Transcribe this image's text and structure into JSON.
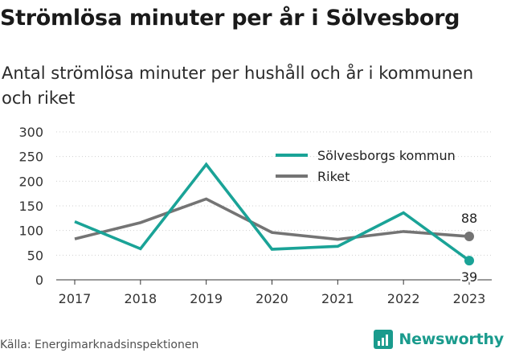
{
  "title": "Strömlösa minuter per år i Sölvesborg",
  "subtitle": "Antal strömlösa minuter per hushåll och år i kommunen och riket",
  "source": "Källa: Energimarknadsinspektionen",
  "brand": {
    "name": "Newsworthy",
    "logo_icon": "newsworthy-logo-icon",
    "color": "#1a9b8d"
  },
  "chart_data": {
    "type": "line",
    "title": "",
    "xlabel": "",
    "ylabel": "",
    "x": [
      "2017",
      "2018",
      "2019",
      "2020",
      "2021",
      "2022",
      "2023"
    ],
    "ylim": [
      0,
      300
    ],
    "yticks": [
      "0",
      "50",
      "100",
      "150",
      "200",
      "250",
      "300"
    ],
    "grid": true,
    "legend_position": "top-right",
    "series": [
      {
        "name": "Sölvesborgs kommun",
        "color": "#1aa397",
        "values": [
          118,
          63,
          234,
          62,
          68,
          136,
          39
        ],
        "end_label": "39"
      },
      {
        "name": "Riket",
        "color": "#747474",
        "values": [
          83,
          116,
          164,
          96,
          82,
          98,
          88
        ],
        "end_label": "88"
      }
    ]
  }
}
